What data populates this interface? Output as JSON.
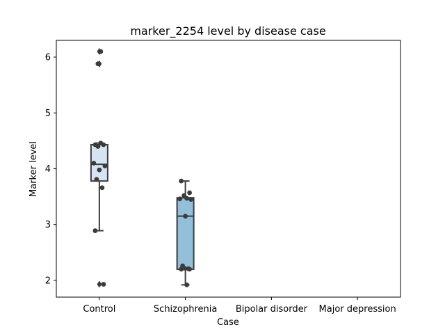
{
  "chart_data": {
    "type": "box",
    "title": "marker_2254 level by disease case",
    "xlabel": "Case",
    "ylabel": "Marker level",
    "categories": [
      "Control",
      "Schizophrenia",
      "Bipolar disorder",
      "Major depression"
    ],
    "ylim": [
      1.7,
      6.3
    ],
    "yticks": [
      2,
      3,
      4,
      5,
      6
    ],
    "grid": false,
    "colors": {
      "Control": "#d6e3f1",
      "Schizophrenia": "#94bfd8",
      "box_edge": "#3b3b3b",
      "point": "#3b3b3b"
    },
    "boxes": [
      {
        "category": "Control",
        "q1": 3.78,
        "median": 4.08,
        "q3": 4.43,
        "whisker_low": 2.89,
        "whisker_high": 4.46,
        "outliers": [
          1.93,
          5.88,
          6.1
        ]
      },
      {
        "category": "Schizophrenia",
        "q1": 2.2,
        "median": 3.15,
        "q3": 3.48,
        "whisker_low": 1.92,
        "whisker_high": 3.78,
        "outliers": []
      }
    ],
    "points": [
      {
        "category": "Control",
        "values": [
          4.43,
          4.43,
          4.4,
          4.46,
          4.1,
          4.05,
          3.98,
          3.81,
          3.66,
          2.89,
          1.93,
          5.88,
          6.1
        ]
      },
      {
        "category": "Schizophrenia",
        "values": [
          3.78,
          3.57,
          3.52,
          3.47,
          3.46,
          3.45,
          3.15,
          2.26,
          2.21,
          2.2,
          2.2,
          2.22,
          1.92
        ]
      }
    ]
  }
}
